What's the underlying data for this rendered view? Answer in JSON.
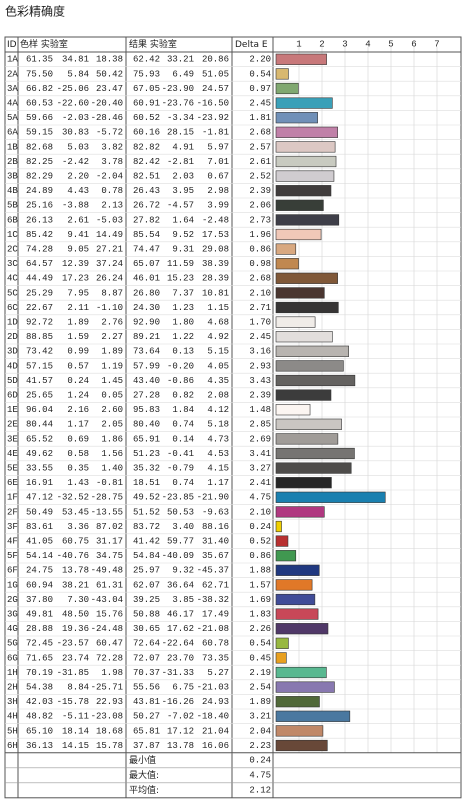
{
  "title": "色彩精确度",
  "table": {
    "headers": [
      "ID",
      "色样 实验室",
      "结果 实验室",
      "Delta E"
    ],
    "rows": [
      [
        "1A",
        "61.35",
        "34.81",
        "18.38",
        "62.42",
        "33.21",
        "20.86",
        "2.20"
      ],
      [
        "2A",
        "75.50",
        "5.84",
        "50.42",
        "75.93",
        "6.49",
        "51.05",
        "0.54"
      ],
      [
        "3A",
        "66.82",
        "-25.06",
        "23.47",
        "67.05",
        "-23.90",
        "24.57",
        "0.97"
      ],
      [
        "4A",
        "60.53",
        "-22.60",
        "-20.40",
        "60.91",
        "-23.76",
        "-16.50",
        "2.45"
      ],
      [
        "5A",
        "59.66",
        "-2.03",
        "-28.46",
        "60.52",
        "-3.34",
        "-23.92",
        "1.81"
      ],
      [
        "6A",
        "59.15",
        "30.83",
        "-5.72",
        "60.16",
        "28.15",
        "-1.81",
        "2.68"
      ],
      [
        "1B",
        "82.68",
        "5.03",
        "3.82",
        "82.82",
        "4.91",
        "5.97",
        "2.57"
      ],
      [
        "2B",
        "82.25",
        "-2.42",
        "3.78",
        "82.42",
        "-2.81",
        "7.01",
        "2.61"
      ],
      [
        "3B",
        "82.29",
        "2.20",
        "-2.04",
        "82.51",
        "2.03",
        "0.67",
        "2.52"
      ],
      [
        "4B",
        "24.89",
        "4.43",
        "0.78",
        "26.43",
        "3.95",
        "2.98",
        "2.39"
      ],
      [
        "5B",
        "25.16",
        "-3.88",
        "2.13",
        "26.72",
        "-4.57",
        "3.99",
        "2.06"
      ],
      [
        "6B",
        "26.13",
        "2.61",
        "-5.03",
        "27.82",
        "1.64",
        "-2.48",
        "2.73"
      ],
      [
        "1C",
        "85.42",
        "9.41",
        "14.49",
        "85.54",
        "9.52",
        "17.53",
        "1.96"
      ],
      [
        "2C",
        "74.28",
        "9.05",
        "27.21",
        "74.47",
        "9.31",
        "29.08",
        "0.86"
      ],
      [
        "3C",
        "64.57",
        "12.39",
        "37.24",
        "65.07",
        "11.59",
        "38.39",
        "0.98"
      ],
      [
        "4C",
        "44.49",
        "17.23",
        "26.24",
        "46.01",
        "15.23",
        "28.39",
        "2.68"
      ],
      [
        "5C",
        "25.29",
        "7.95",
        "8.87",
        "26.80",
        "7.37",
        "10.81",
        "2.10"
      ],
      [
        "6C",
        "22.67",
        "2.11",
        "-1.10",
        "24.30",
        "1.23",
        "1.15",
        "2.71"
      ],
      [
        "1D",
        "92.72",
        "1.89",
        "2.76",
        "92.90",
        "1.80",
        "4.68",
        "1.70"
      ],
      [
        "2D",
        "88.85",
        "1.59",
        "2.27",
        "89.21",
        "1.22",
        "4.92",
        "2.45"
      ],
      [
        "3D",
        "73.42",
        "0.99",
        "1.89",
        "73.64",
        "0.13",
        "5.15",
        "3.16"
      ],
      [
        "4D",
        "57.15",
        "0.57",
        "1.19",
        "57.99",
        "-0.20",
        "4.05",
        "2.93"
      ],
      [
        "5D",
        "41.57",
        "0.24",
        "1.45",
        "43.40",
        "-0.86",
        "4.35",
        "3.43"
      ],
      [
        "6D",
        "25.65",
        "1.24",
        "0.05",
        "27.28",
        "0.82",
        "2.08",
        "2.39"
      ],
      [
        "1E",
        "96.04",
        "2.16",
        "2.60",
        "95.83",
        "1.84",
        "4.12",
        "1.48"
      ],
      [
        "2E",
        "80.44",
        "1.17",
        "2.05",
        "80.40",
        "0.74",
        "5.18",
        "2.85"
      ],
      [
        "3E",
        "65.52",
        "0.69",
        "1.86",
        "65.91",
        "0.14",
        "4.73",
        "2.69"
      ],
      [
        "4E",
        "49.62",
        "0.58",
        "1.56",
        "51.23",
        "-0.41",
        "4.53",
        "3.41"
      ],
      [
        "5E",
        "33.55",
        "0.35",
        "1.40",
        "35.32",
        "-0.79",
        "4.15",
        "3.27"
      ],
      [
        "6E",
        "16.91",
        "1.43",
        "-0.81",
        "18.51",
        "0.74",
        "1.17",
        "2.41"
      ],
      [
        "1F",
        "47.12",
        "-32.52",
        "-28.75",
        "49.52",
        "-23.85",
        "-21.90",
        "4.75"
      ],
      [
        "2F",
        "50.49",
        "53.45",
        "-13.55",
        "51.52",
        "50.53",
        "-9.63",
        "2.10"
      ],
      [
        "3F",
        "83.61",
        "3.36",
        "87.02",
        "83.72",
        "3.40",
        "88.16",
        "0.24"
      ],
      [
        "4F",
        "41.05",
        "60.75",
        "31.17",
        "41.42",
        "59.77",
        "31.40",
        "0.52"
      ],
      [
        "5F",
        "54.14",
        "-40.76",
        "34.75",
        "54.84",
        "-40.09",
        "35.67",
        "0.86"
      ],
      [
        "6F",
        "24.75",
        "13.78",
        "-49.48",
        "25.97",
        "9.32",
        "-45.37",
        "1.88"
      ],
      [
        "1G",
        "60.94",
        "38.21",
        "61.31",
        "62.07",
        "36.64",
        "62.71",
        "1.57"
      ],
      [
        "2G",
        "37.80",
        "7.30",
        "-43.04",
        "39.25",
        "3.85",
        "-38.32",
        "1.69"
      ],
      [
        "3G",
        "49.81",
        "48.50",
        "15.76",
        "50.88",
        "46.17",
        "17.49",
        "1.83"
      ],
      [
        "4G",
        "28.88",
        "19.36",
        "-24.48",
        "30.65",
        "17.62",
        "-21.08",
        "2.26"
      ],
      [
        "5G",
        "72.45",
        "-23.57",
        "60.47",
        "72.64",
        "-22.64",
        "60.78",
        "0.54"
      ],
      [
        "6G",
        "71.65",
        "23.74",
        "72.28",
        "72.07",
        "23.70",
        "73.35",
        "0.45"
      ],
      [
        "1H",
        "70.19",
        "-31.85",
        "1.98",
        "70.37",
        "-31.33",
        "5.27",
        "2.19"
      ],
      [
        "2H",
        "54.38",
        "8.84",
        "-25.71",
        "55.56",
        "6.75",
        "-21.03",
        "2.54"
      ],
      [
        "3H",
        "42.03",
        "-15.78",
        "22.93",
        "43.81",
        "-16.26",
        "24.93",
        "1.89"
      ],
      [
        "4H",
        "48.82",
        "-5.11",
        "-23.08",
        "50.27",
        "-7.02",
        "-18.40",
        "3.21"
      ],
      [
        "5H",
        "65.10",
        "18.14",
        "18.68",
        "65.81",
        "17.12",
        "21.04",
        "2.04"
      ],
      [
        "6H",
        "36.13",
        "14.15",
        "15.78",
        "37.87",
        "13.78",
        "16.06",
        "2.23"
      ]
    ],
    "bar_colors": [
      "#c8787a",
      "#d8b870",
      "#80a870",
      "#3aa0b8",
      "#7090b8",
      "#c080a8",
      "#dcc8c4",
      "#c8cac0",
      "#d0ccd0",
      "#403c3c",
      "#383e38",
      "#3e3e48",
      "#f0c8b8",
      "#d8a880",
      "#c08850",
      "#805838",
      "#4a3630",
      "#363434",
      "#f0ece8",
      "#e2dedc",
      "#b8b4b0",
      "#8c8a88",
      "#646260",
      "#3c3c3c",
      "#fcf6f2",
      "#cac6c2",
      "#a09c98",
      "#767472",
      "#4e4c4a",
      "#262626",
      "#1a80b0",
      "#b03880",
      "#f0d000",
      "#b83030",
      "#409850",
      "#203880",
      "#e07828",
      "#404c98",
      "#c84858",
      "#503868",
      "#98b840",
      "#e8a020",
      "#58b890",
      "#8878b0",
      "#506838",
      "#4a78a0",
      "#c08868",
      "#684838"
    ]
  },
  "axis": {
    "xlim": [
      0,
      8
    ],
    "ticks": [
      1,
      2,
      3,
      4,
      5,
      6,
      7
    ]
  },
  "summary": [
    {
      "label": "最小值",
      "value": "0.24"
    },
    {
      "label": "最大值:",
      "value": "4.75"
    },
    {
      "label": "平均值:",
      "value": "2.12"
    }
  ]
}
